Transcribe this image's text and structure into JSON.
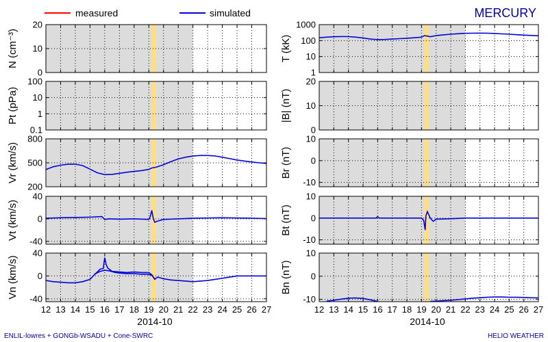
{
  "title": "MERCURY",
  "legend": {
    "measured": "measured",
    "simulated": "simulated"
  },
  "colors": {
    "measured": "#ff0000",
    "simulated": "#0000dd",
    "shade": "#dcdcdc",
    "highlight": "#ffdf80",
    "title": "#0000a0"
  },
  "date_label": "2014-10",
  "footer_left": "ENLIL-lowres + GONGb-WSADU + Cone-SWRC",
  "footer_right": "HELIO WEATHER",
  "chart_data": {
    "type": "line",
    "xlim": [
      12,
      27
    ],
    "x_ticks": [
      "12",
      "13",
      "14",
      "15",
      "16",
      "17",
      "18",
      "19",
      "20",
      "21",
      "22",
      "23",
      "24",
      "25",
      "26",
      "27"
    ],
    "shaded_range": [
      12,
      22
    ],
    "highlight_range": [
      19.2,
      19.5
    ],
    "panels": [
      {
        "id": "N",
        "ylabel": "N (cm⁻³)",
        "scale": "linear",
        "ylim": [
          0,
          20
        ],
        "yticks": [
          0,
          10,
          20
        ],
        "ytick_labels": [
          "0",
          "10",
          "20"
        ],
        "series": []
      },
      {
        "id": "Pt",
        "ylabel": "Pt (pPa)",
        "scale": "log",
        "ylim": [
          0.1,
          100
        ],
        "yticks": [
          0.1,
          1,
          10,
          100
        ],
        "ytick_labels": [
          "0.1",
          "1",
          "10",
          "100"
        ],
        "series": []
      },
      {
        "id": "Vr",
        "ylabel": "Vr (km/s)",
        "scale": "linear",
        "ylim": [
          200,
          800
        ],
        "yticks": [
          200,
          500,
          800
        ],
        "ytick_labels": [
          "200",
          "500",
          "800"
        ],
        "series": [
          {
            "name": "simulated",
            "x": [
              12,
              12.5,
              13,
              13.5,
              14,
              14.5,
              15,
              15.5,
              16,
              16.5,
              17,
              17.5,
              18,
              18.5,
              19,
              19.2,
              19.5,
              20,
              20.5,
              21,
              21.5,
              22,
              22.5,
              23,
              23.5,
              24,
              24.5,
              25,
              25.5,
              26,
              26.5,
              27
            ],
            "y": [
              415,
              450,
              470,
              482,
              483,
              465,
              420,
              375,
              352,
              355,
              368,
              382,
              392,
              402,
              418,
              435,
              445,
              475,
              515,
              548,
              570,
              585,
              592,
              592,
              586,
              570,
              552,
              535,
              522,
              510,
              500,
              492
            ]
          }
        ]
      },
      {
        "id": "Vt",
        "ylabel": "Vt (km/s)",
        "scale": "linear",
        "ylim": [
          -45,
          40
        ],
        "yticks": [
          -40,
          0,
          40
        ],
        "ytick_labels": [
          "-40",
          "0",
          "40"
        ],
        "series": [
          {
            "name": "simulated",
            "x": [
              12,
              13,
              14,
              15,
              15.8,
              16,
              16.3,
              17,
              18,
              19,
              19.1,
              19.2,
              19.3,
              19.4,
              19.6,
              20,
              21,
              22,
              23,
              24,
              25,
              26,
              27
            ],
            "y": [
              1,
              2,
              2.5,
              3,
              4,
              -1,
              0,
              -0.5,
              0,
              -1,
              4,
              15,
              1,
              -6,
              -4,
              -1,
              0,
              1,
              1.5,
              2,
              1.5,
              1,
              0.5
            ]
          }
        ]
      },
      {
        "id": "Vn",
        "ylabel": "Vn (km/s)",
        "scale": "linear",
        "ylim": [
          -45,
          40
        ],
        "yticks": [
          -40,
          0,
          40
        ],
        "ytick_labels": [
          "-40",
          "0",
          "40"
        ],
        "series": [
          {
            "name": "simulated",
            "x": [
              12,
              12.5,
              13,
              13.5,
              14,
              14.5,
              15,
              15.3,
              15.7,
              15.9,
              16,
              16.1,
              16.2,
              16.5,
              17,
              17.5,
              18,
              18.5,
              19,
              19.2,
              19.4,
              19.6,
              20,
              20.5,
              21,
              21.5,
              22,
              22.5,
              23,
              23.5,
              24,
              24.5,
              25,
              25.5,
              26,
              26.5,
              27
            ],
            "y": [
              -8,
              -10,
              -11,
              -12,
              -12,
              -10,
              -6,
              2,
              12,
              13,
              32,
              20,
              14,
              8,
              7,
              6,
              7,
              6,
              6,
              2,
              -6,
              -2,
              -5,
              -7,
              -8,
              -9,
              -10,
              -9,
              -8,
              -6,
              -4,
              -2,
              0,
              0,
              0,
              0,
              0
            ]
          },
          {
            "name": "simulated",
            "x": [
              15.3,
              15.7,
              16,
              16.3,
              16.7,
              17,
              17.5,
              18,
              18.5,
              19,
              19.2,
              19.4
            ],
            "y": [
              3,
              8,
              10,
              9,
              6,
              5,
              4,
              4,
              3,
              3,
              1,
              -5
            ]
          }
        ]
      },
      {
        "id": "T",
        "ylabel": "T (kK)",
        "scale": "log",
        "ylim": [
          1,
          1000
        ],
        "yticks": [
          1,
          10,
          100,
          1000
        ],
        "ytick_labels": [
          "1",
          "10",
          "100",
          "1000"
        ],
        "series": [
          {
            "name": "simulated",
            "x": [
              12,
              12.5,
              13,
              13.5,
              14,
              14.5,
              15,
              15.5,
              16,
              16.5,
              17,
              17.5,
              18,
              18.5,
              19,
              19.2,
              19.4,
              19.6,
              20,
              20.5,
              21,
              21.5,
              22,
              22.5,
              23,
              23.5,
              24,
              24.5,
              25,
              25.5,
              26,
              26.5,
              27
            ],
            "y": [
              150,
              165,
              175,
              180,
              178,
              165,
              145,
              125,
              115,
              118,
              125,
              132,
              140,
              150,
              165,
              205,
              190,
              175,
              205,
              230,
              252,
              270,
              285,
              292,
              295,
              290,
              280,
              265,
              250,
              235,
              222,
              210,
              200
            ]
          }
        ]
      },
      {
        "id": "B",
        "ylabel": "|B| (nT)",
        "scale": "linear",
        "ylim": [
          0,
          20
        ],
        "yticks": [
          0,
          10,
          20
        ],
        "ytick_labels": [
          "0",
          "10",
          "20"
        ],
        "series": []
      },
      {
        "id": "Br",
        "ylabel": "Br (nT)",
        "scale": "linear",
        "ylim": [
          -12,
          10
        ],
        "yticks": [
          -10,
          0,
          10
        ],
        "ytick_labels": [
          "-10",
          "0",
          "10"
        ],
        "series": []
      },
      {
        "id": "Bt",
        "ylabel": "Bt (nT)",
        "scale": "linear",
        "ylim": [
          -12,
          10
        ],
        "yticks": [
          -10,
          0,
          10
        ],
        "ytick_labels": [
          "-10",
          "0",
          "10"
        ],
        "series": [
          {
            "name": "simulated",
            "x": [
              12,
              13,
              14,
              15,
              15.9,
              16,
              16.1,
              17,
              18,
              19,
              19.15,
              19.25,
              19.3,
              19.4,
              19.5,
              19.6,
              19.8,
              20,
              21,
              22,
              23,
              24,
              25,
              26,
              27
            ],
            "y": [
              0,
              0,
              0,
              0,
              0,
              0.7,
              0,
              0,
              0,
              0,
              -1,
              -5.5,
              1,
              3,
              1.5,
              0,
              -1.5,
              -0.5,
              -0.3,
              0,
              0,
              0,
              0,
              0,
              0
            ]
          }
        ]
      },
      {
        "id": "Bn",
        "ylabel": "Bn (nT)",
        "scale": "linear",
        "ylim": [
          -11,
          10
        ],
        "yticks": [
          -10,
          0,
          10
        ],
        "ytick_labels": [
          "-10",
          "0",
          "10"
        ],
        "series": [
          {
            "name": "simulated",
            "x": [
              12.5,
              13,
              13.5,
              14,
              14.5,
              15,
              15.5,
              16
            ],
            "y": [
              -10.8,
              -10.4,
              -9.9,
              -9.5,
              -9.4,
              -9.6,
              -10.2,
              -10.9
            ]
          },
          {
            "name": "simulated",
            "x": [
              19.6,
              20,
              20.5,
              21,
              21.5,
              22,
              22.5,
              23,
              23.5,
              24,
              24.5,
              25,
              25.5,
              26,
              26.5,
              27
            ],
            "y": [
              -10.9,
              -10.8,
              -10.6,
              -10.4,
              -10.1,
              -9.8,
              -9.5,
              -9.3,
              -9.1,
              -9.0,
              -9.0,
              -9.1,
              -9.1,
              -9.2,
              -9.3,
              -9.4
            ]
          }
        ]
      }
    ]
  }
}
